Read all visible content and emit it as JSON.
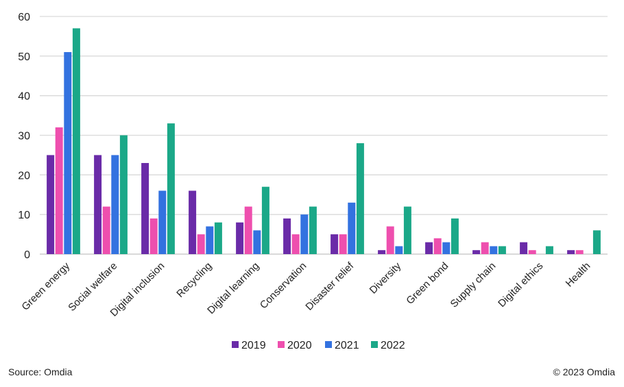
{
  "chart_data": {
    "type": "bar",
    "title": "",
    "xlabel": "",
    "ylabel": "",
    "ylim": [
      0,
      60
    ],
    "yticks": [
      0,
      10,
      20,
      30,
      40,
      50,
      60
    ],
    "grid": true,
    "legend_position": "bottom",
    "categories": [
      "Green energy",
      "Social welfare",
      "Digital inclusion",
      "Recycling",
      "Digital learning",
      "Conservation",
      "Disaster relief",
      "Diversity",
      "Green bond",
      "Supply chain",
      "Digital ethics",
      "Health"
    ],
    "series": [
      {
        "name": "2019",
        "color": "#6A2BA8",
        "values": [
          25,
          25,
          23,
          16,
          8,
          9,
          5,
          1,
          3,
          1,
          3,
          1
        ]
      },
      {
        "name": "2020",
        "color": "#EE4FAE",
        "values": [
          32,
          12,
          9,
          5,
          12,
          5,
          5,
          7,
          4,
          3,
          1,
          1
        ]
      },
      {
        "name": "2021",
        "color": "#3372E0",
        "values": [
          51,
          25,
          16,
          7,
          6,
          10,
          13,
          2,
          3,
          2,
          0,
          0
        ]
      },
      {
        "name": "2022",
        "color": "#1BA888",
        "values": [
          57,
          30,
          33,
          8,
          17,
          12,
          28,
          12,
          9,
          2,
          2,
          6
        ]
      }
    ]
  },
  "footer": {
    "source": "Source: Omdia",
    "copyright": "© 2023 Omdia"
  }
}
